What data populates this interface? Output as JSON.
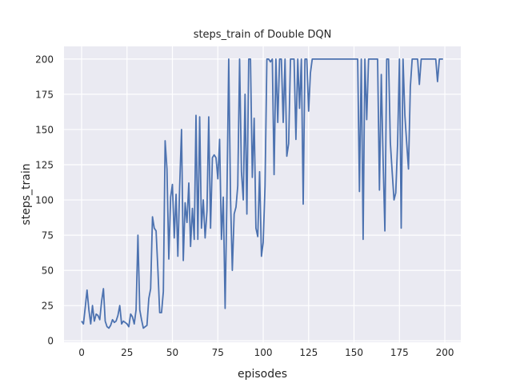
{
  "chart_data": {
    "type": "line",
    "title": "steps_train of Double DQN",
    "xlabel": "episodes",
    "ylabel": "steps_train",
    "xlim": [
      -9.7,
      208.8
    ],
    "ylim": [
      -1,
      209
    ],
    "xticks": [
      0,
      25,
      50,
      75,
      100,
      125,
      150,
      175,
      200
    ],
    "yticks": [
      0,
      25,
      50,
      75,
      100,
      125,
      150,
      175,
      200
    ],
    "grid": true,
    "colors": {
      "line": "#4c72b0",
      "background": "#eaeaf2",
      "grid": "#ffffff"
    },
    "values": [
      14,
      12,
      24,
      36,
      22,
      12,
      25,
      14,
      19,
      18,
      15,
      28,
      37,
      14,
      10,
      9,
      11,
      15,
      13,
      14,
      18,
      25,
      12,
      14,
      13,
      12,
      10,
      19,
      17,
      12,
      22,
      75,
      22,
      15,
      9,
      10,
      11,
      30,
      37,
      88,
      80,
      78,
      50,
      20,
      20,
      35,
      142,
      122,
      58,
      102,
      111,
      73,
      104,
      60,
      110,
      150,
      57,
      98,
      84,
      112,
      67,
      94,
      72,
      160,
      72,
      159,
      80,
      100,
      73,
      92,
      159,
      80,
      130,
      132,
      130,
      115,
      143,
      72,
      102,
      23,
      100,
      200,
      100,
      50,
      90,
      95,
      110,
      200,
      120,
      100,
      175,
      90,
      200,
      200,
      116,
      158,
      80,
      74,
      120,
      60,
      70,
      110,
      200,
      200,
      198,
      200,
      118,
      200,
      155,
      200,
      200,
      155,
      200,
      131,
      140,
      200,
      200,
      200,
      143,
      200,
      165,
      200,
      97,
      200,
      200,
      163,
      190,
      200,
      200,
      200,
      200,
      200,
      200,
      200,
      200,
      200,
      200,
      200,
      200,
      200,
      200,
      200,
      200,
      200,
      200,
      200,
      200,
      200,
      200,
      200,
      200,
      200,
      200,
      106,
      200,
      72,
      200,
      157,
      200,
      200,
      200,
      200,
      200,
      200,
      107,
      189,
      130,
      78,
      200,
      200,
      141,
      120,
      100,
      105,
      140,
      200,
      80,
      200,
      160,
      140,
      122,
      180,
      200,
      200,
      200,
      200,
      182,
      200,
      200,
      200,
      200,
      200,
      200,
      200,
      200,
      200,
      184,
      200,
      200,
      200
    ]
  }
}
